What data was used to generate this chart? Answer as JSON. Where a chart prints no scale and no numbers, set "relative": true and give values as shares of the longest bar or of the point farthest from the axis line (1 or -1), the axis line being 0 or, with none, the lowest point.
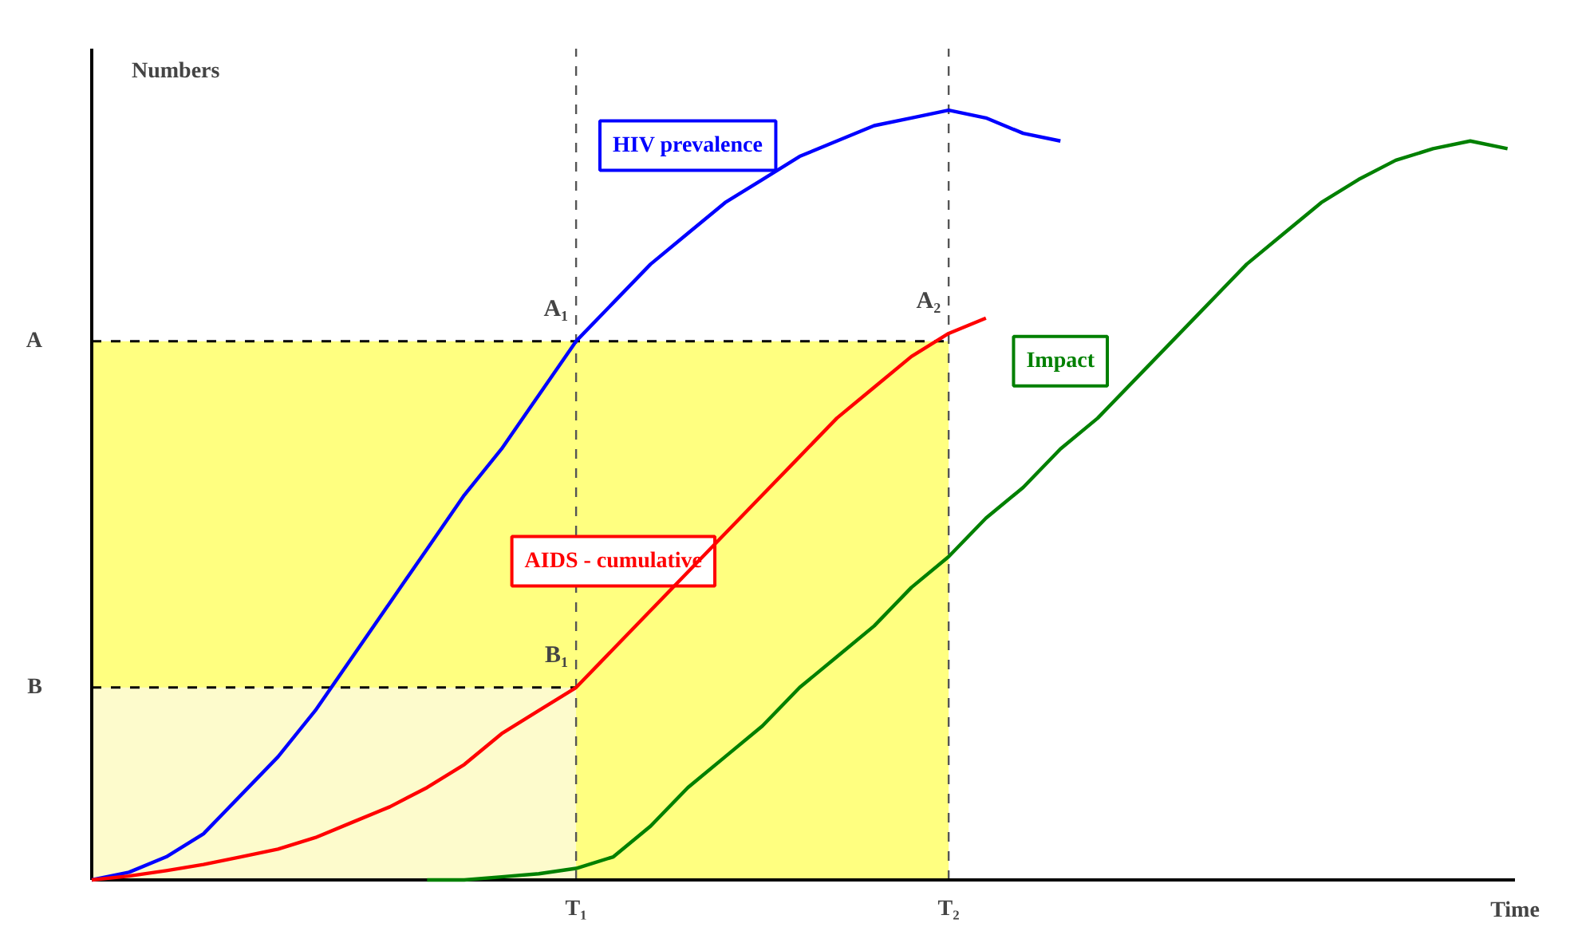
{
  "chart_data": {
    "type": "line",
    "relative": true,
    "ylabel": "Numbers",
    "xlabel": "Time",
    "categories": [
      null,
      null,
      null,
      null,
      null,
      null,
      null,
      null,
      null,
      null,
      null,
      null,
      null,
      "T₁",
      null,
      null,
      null,
      null,
      null,
      null,
      null,
      null,
      null,
      "T₂",
      null,
      null,
      null,
      null,
      null,
      null,
      null,
      null,
      null,
      null,
      null,
      null,
      null,
      null,
      null
    ],
    "marker": "none",
    "line_style": "solid",
    "grid": false,
    "series": [
      {
        "name": "HIV prevalence",
        "color": "#0000ff",
        "values": [
          0,
          0.01,
          0.03,
          0.06,
          0.11,
          0.16,
          0.22,
          0.29,
          0.36,
          0.43,
          0.5,
          0.56,
          0.63,
          0.7,
          0.75,
          0.8,
          0.84,
          0.88,
          0.91,
          0.94,
          0.96,
          0.98,
          0.99,
          1.0,
          0.99,
          0.97,
          0.96,
          null,
          null,
          null,
          null,
          null,
          null,
          null,
          null,
          null,
          null,
          null,
          null
        ]
      },
      {
        "name": "AIDS - cumulative",
        "color": "#ff0000",
        "values": [
          0,
          0.005,
          0.012,
          0.02,
          0.03,
          0.04,
          0.055,
          0.075,
          0.095,
          0.12,
          0.15,
          0.19,
          0.22,
          0.25,
          0.3,
          0.35,
          0.4,
          0.45,
          0.5,
          0.55,
          0.6,
          0.64,
          0.68,
          0.71,
          0.73,
          null,
          null,
          null,
          null,
          null,
          null,
          null,
          null,
          null,
          null,
          null,
          null,
          null,
          null
        ]
      },
      {
        "name": "Impact",
        "color": "#008000",
        "values": [
          null,
          null,
          null,
          null,
          null,
          null,
          null,
          null,
          null,
          0,
          0,
          0.004,
          0.008,
          0.015,
          0.03,
          0.07,
          0.12,
          0.16,
          0.2,
          0.25,
          0.29,
          0.33,
          0.38,
          0.42,
          0.47,
          0.51,
          0.56,
          0.6,
          0.65,
          0.7,
          0.75,
          0.8,
          0.84,
          0.88,
          0.91,
          0.935,
          0.95,
          0.96,
          0.95
        ]
      }
    ],
    "ref_lines": [
      {
        "axis": "y",
        "value": 0.7,
        "label": "A"
      },
      {
        "axis": "y",
        "value": 0.25,
        "label": "B"
      },
      {
        "axis": "x",
        "value": "T₂"
      },
      {
        "axis": "x",
        "value": "T₁"
      }
    ],
    "bands": [
      {
        "axis": "y",
        "from": 0,
        "to": 0.7,
        "color": "#ffff80"
      },
      {
        "axis": "y",
        "from": 0,
        "to": 0.25,
        "color": "#fdfbcc"
      }
    ],
    "annotations": [
      {
        "text": "A₁",
        "x": "T₁",
        "y": 0.7
      },
      {
        "text": "B₁",
        "x": "T₁",
        "y": 0.25
      },
      {
        "text": "A₂",
        "x": "T₂",
        "y": 0.71
      }
    ]
  }
}
